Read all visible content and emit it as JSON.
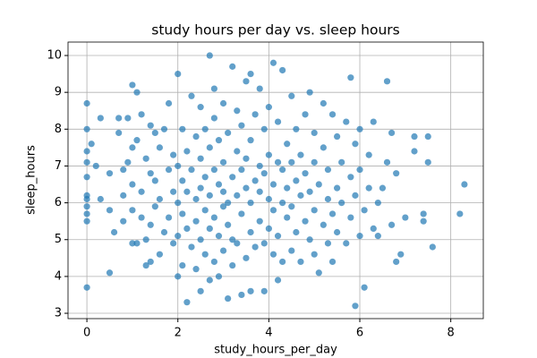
{
  "chart_data": {
    "type": "scatter",
    "title": "study hours per day vs. sleep hours",
    "x_label": "study_hours_per_day",
    "y_label": "sleep_hours",
    "color": "#1f77b4",
    "grid": true,
    "xlim": [
      -0.415,
      8.715
    ],
    "ylim": [
      2.855,
      10.365
    ],
    "xticks": [
      0,
      2,
      4,
      6,
      8
    ],
    "yticks": [
      3,
      4,
      5,
      6,
      7,
      8,
      9,
      10
    ],
    "x": [
      0,
      0,
      0,
      0,
      0,
      0,
      0,
      0,
      0,
      0,
      0,
      0.1,
      0.2,
      0.3,
      0.3,
      0.5,
      0.5,
      0.5,
      0.6,
      0.7,
      0.7,
      0.8,
      0.8,
      0.8,
      0.9,
      0.9,
      1.0,
      1.0,
      1.0,
      1.0,
      1.0,
      1.1,
      1.1,
      1.1,
      1.2,
      1.2,
      1.2,
      1.3,
      1.3,
      1.3,
      1.4,
      1.4,
      1.4,
      1.4,
      1.5,
      1.5,
      1.5,
      1.6,
      1.6,
      1.6,
      1.7,
      1.7,
      1.8,
      1.8,
      1.8,
      1.9,
      1.9,
      1.9,
      2.0,
      2.0,
      2.0,
      2.0,
      2.0,
      2.1,
      2.1,
      2.1,
      2.1,
      2.2,
      2.2,
      2.2,
      2.2,
      2.3,
      2.3,
      2.3,
      2.4,
      2.4,
      2.4,
      2.4,
      2.5,
      2.5,
      2.5,
      2.5,
      2.5,
      2.6,
      2.6,
      2.6,
      2.6,
      2.7,
      2.7,
      2.7,
      2.7,
      2.7,
      2.8,
      2.8,
      2.8,
      2.8,
      2.8,
      2.9,
      2.9,
      2.9,
      2.9,
      3.0,
      3.0,
      3.0,
      3.0,
      3.0,
      3.1,
      3.1,
      3.1,
      3.1,
      3.2,
      3.2,
      3.2,
      3.2,
      3.3,
      3.3,
      3.3,
      3.3,
      3.4,
      3.4,
      3.4,
      3.4,
      3.5,
      3.5,
      3.5,
      3.5,
      3.6,
      3.6,
      3.6,
      3.6,
      3.6,
      3.7,
      3.7,
      3.7,
      3.8,
      3.8,
      3.8,
      3.8,
      3.9,
      3.9,
      3.9,
      3.9,
      4.0,
      4.0,
      4.0,
      4.0,
      4.1,
      4.1,
      4.1,
      4.1,
      4.2,
      4.2,
      4.2,
      4.2,
      4.3,
      4.3,
      4.3,
      4.3,
      4.4,
      4.4,
      4.4,
      4.5,
      4.5,
      4.5,
      4.5,
      4.6,
      4.6,
      4.6,
      4.7,
      4.7,
      4.7,
      4.8,
      4.8,
      4.8,
      4.9,
      4.9,
      4.9,
      5.0,
      5.0,
      5.0,
      5.0,
      5.1,
      5.1,
      5.2,
      5.2,
      5.2,
      5.3,
      5.3,
      5.3,
      5.4,
      5.4,
      5.4,
      5.5,
      5.5,
      5.5,
      5.6,
      5.6,
      5.7,
      5.7,
      5.8,
      5.8,
      5.8,
      5.9,
      5.9,
      5.9,
      6.0,
      6.0,
      6.0,
      6.1,
      6.1,
      6.2,
      6.2,
      6.3,
      6.3,
      6.4,
      6.4,
      6.5,
      6.6,
      6.6,
      6.7,
      6.7,
      6.8,
      6.8,
      6.9,
      7.0,
      7.2,
      7.2,
      7.4,
      7.4,
      7.5,
      7.5,
      7.6,
      8.2,
      8.3
    ],
    "values": [
      3.7,
      5.5,
      5.7,
      5.9,
      6.1,
      6.2,
      6.7,
      7.1,
      7.4,
      8.0,
      8.7,
      7.6,
      7.0,
      6.1,
      8.3,
      4.1,
      5.8,
      6.8,
      5.2,
      7.9,
      8.3,
      5.5,
      6.2,
      6.9,
      8.3,
      7.1,
      4.9,
      5.8,
      6.5,
      7.5,
      9.2,
      9.0,
      4.9,
      7.7,
      5.6,
      6.3,
      8.4,
      4.3,
      5.0,
      7.2,
      4.4,
      5.4,
      6.8,
      8.1,
      5.9,
      6.6,
      7.9,
      4.6,
      6.1,
      7.5,
      5.2,
      8.0,
      5.6,
      6.9,
      8.7,
      4.9,
      6.3,
      7.3,
      4.0,
      5.1,
      6.0,
      7.0,
      9.5,
      4.3,
      5.7,
      6.6,
      8.0,
      3.3,
      5.3,
      6.3,
      7.4,
      4.8,
      6.9,
      8.9,
      4.2,
      5.5,
      6.1,
      7.8,
      3.6,
      5.0,
      6.4,
      7.2,
      8.6,
      4.6,
      5.8,
      6.7,
      8.0,
      3.9,
      5.3,
      6.2,
      7.5,
      10.0,
      4.4,
      5.6,
      6.9,
      8.3,
      9.1,
      4.0,
      5.1,
      6.5,
      7.7,
      4.7,
      5.9,
      6.3,
      7.1,
      8.7,
      3.4,
      5.4,
      6.0,
      7.9,
      4.3,
      5.0,
      6.7,
      9.7,
      4.9,
      6.2,
      7.4,
      8.5,
      3.5,
      5.7,
      6.9,
      8.1,
      4.5,
      6.4,
      7.2,
      9.3,
      3.6,
      5.2,
      6.0,
      7.7,
      9.5,
      4.8,
      6.6,
      8.4,
      5.5,
      6.3,
      7.0,
      9.1,
      3.6,
      4.9,
      6.8,
      8.0,
      5.3,
      6.1,
      7.3,
      8.6,
      4.6,
      5.8,
      6.5,
      9.8,
      3.9,
      5.1,
      7.1,
      8.2,
      4.4,
      6.0,
      6.9,
      9.6,
      5.6,
      6.4,
      7.6,
      4.7,
      5.9,
      7.1,
      8.9,
      5.2,
      6.6,
      8.0,
      4.4,
      6.2,
      7.3,
      5.5,
      6.8,
      8.4,
      5.0,
      6.3,
      9.0,
      4.6,
      5.8,
      7.1,
      7.9,
      4.1,
      6.5,
      5.4,
      7.5,
      8.7,
      4.9,
      6.1,
      6.9,
      4.4,
      5.7,
      8.4,
      5.2,
      6.4,
      7.8,
      6.0,
      7.1,
      4.9,
      8.2,
      5.6,
      6.7,
      9.4,
      3.2,
      6.2,
      7.6,
      5.1,
      6.9,
      8.0,
      3.7,
      5.8,
      6.4,
      7.3,
      5.3,
      8.2,
      5.1,
      6.0,
      6.4,
      7.1,
      9.3,
      5.4,
      7.9,
      4.4,
      6.8,
      4.6,
      5.6,
      7.4,
      7.8,
      5.5,
      5.7,
      7.1,
      7.8,
      4.8,
      5.7,
      6.5
    ]
  }
}
